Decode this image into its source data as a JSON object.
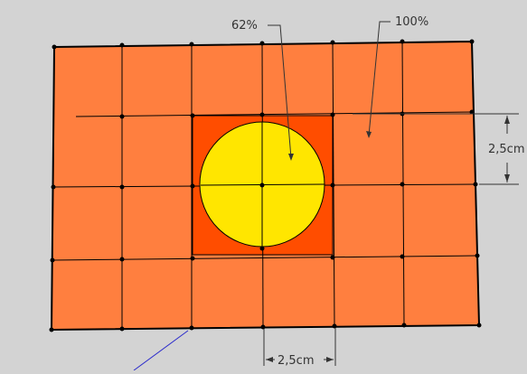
{
  "annotations": {
    "percent_inner": "62%",
    "percent_outer": "100%",
    "dim_vertical": "2,5cm",
    "dim_horizontal": "2,5cm"
  },
  "colors": {
    "background": "#d3d3d3",
    "tile_orange": "#ff7f3f",
    "center_square": "#ff4d00",
    "circle_yellow": "#ffe600",
    "edge_line": "#000000",
    "guide_line": "#2b2bcc"
  }
}
